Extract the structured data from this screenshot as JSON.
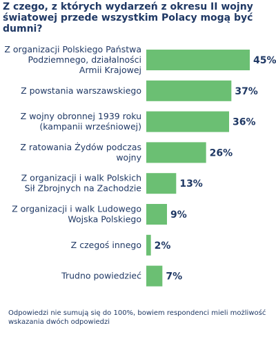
{
  "chart_data": {
    "type": "bar",
    "orientation": "horizontal",
    "title": "Z czego, z których wydarzeń z okresu II wojny światowej przede wszystkim Polacy mogą być dumni?",
    "categories": [
      [
        "Z organizacji Polskiego Państwa",
        "Podziemnego, działalności",
        "Armii Krajowej"
      ],
      [
        "Z powstania warszawskiego"
      ],
      [
        "Z wojny obronnej 1939 roku",
        "(kampanii wrześniowej)"
      ],
      [
        "Z ratowania Żydów podczas",
        "wojny"
      ],
      [
        "Z organizacji i walk Polskich",
        "Sił Zbrojnych na Zachodzie"
      ],
      [
        "Z organizacji i walk Ludowego",
        "Wojska Polskiego"
      ],
      [
        "Z czegoś innego"
      ],
      [
        "Trudno powiedzieć"
      ]
    ],
    "values": [
      45,
      37,
      36,
      26,
      13,
      9,
      2,
      7
    ],
    "value_labels": [
      "45%",
      "37%",
      "36%",
      "26%",
      "13%",
      "9%",
      "2%",
      "7%"
    ],
    "xlim": [
      0,
      45
    ],
    "bar_color": "#6bbf73",
    "text_color": "#1f3864"
  },
  "footnote": "Odpowiedzi nie sumują się do 100%, bowiem respondenci mieli możliwość wskazania dwóch odpowiedzi"
}
